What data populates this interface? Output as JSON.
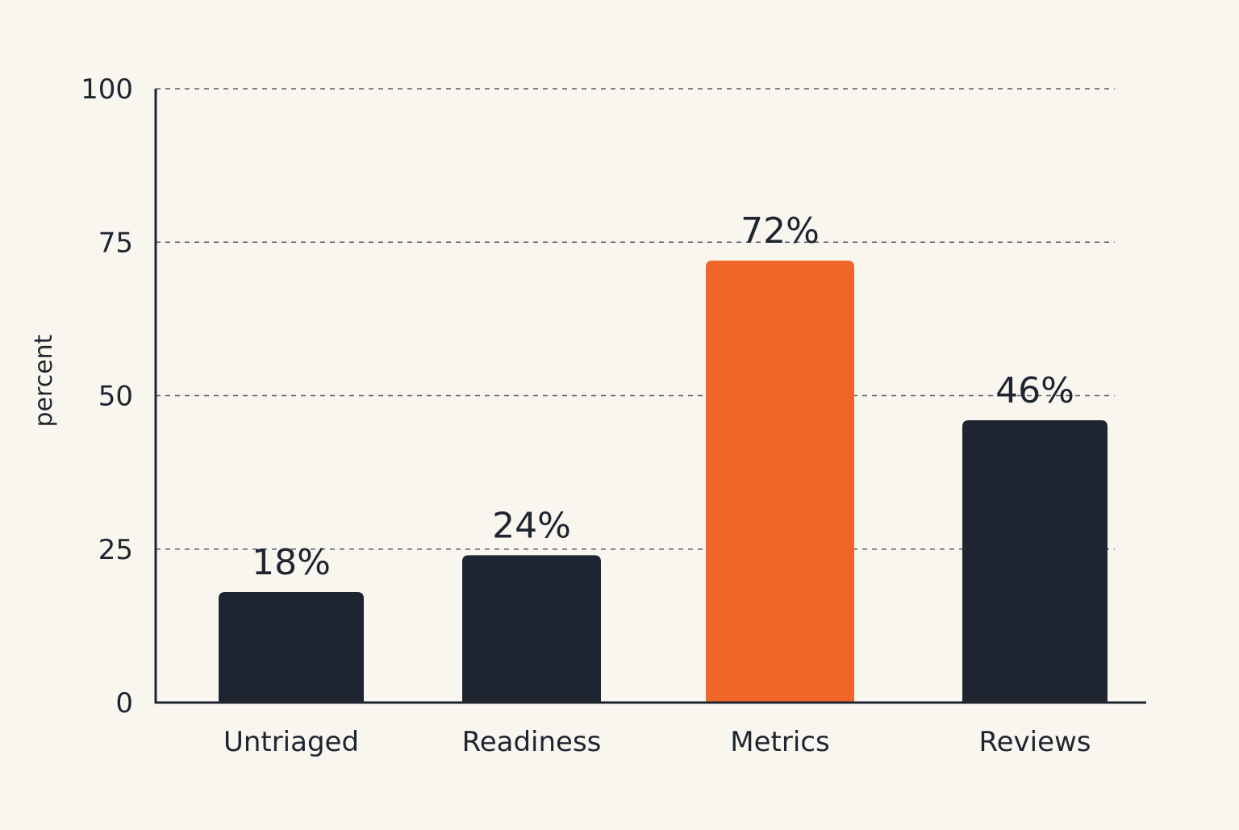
{
  "chart_data": {
    "type": "bar",
    "title": "",
    "xlabel": "",
    "ylabel": "percent",
    "categories": [
      "Untriaged",
      "Readiness",
      "Metrics",
      "Reviews"
    ],
    "values": [
      18,
      24,
      72,
      46
    ],
    "data_labels": [
      "18%",
      "24%",
      "72%",
      "46%"
    ],
    "bar_colors": [
      "#1e2530",
      "#1e2530",
      "#ef6628",
      "#1e2530"
    ],
    "highlight_category": "Metrics",
    "ylim": [
      0,
      100
    ],
    "yticks": [
      0,
      25,
      50,
      75,
      100
    ],
    "ytick_labels": [
      "0",
      "25",
      "50",
      "75",
      "100"
    ],
    "grid": "horizontal-dashed",
    "legend": "none"
  },
  "colors": {
    "background": "#f9f6f0",
    "bar_default": "#1e2530",
    "bar_highlight": "#ef6628",
    "axis": "#1e2530",
    "grid": "#555a62",
    "text": "#1f2530"
  }
}
